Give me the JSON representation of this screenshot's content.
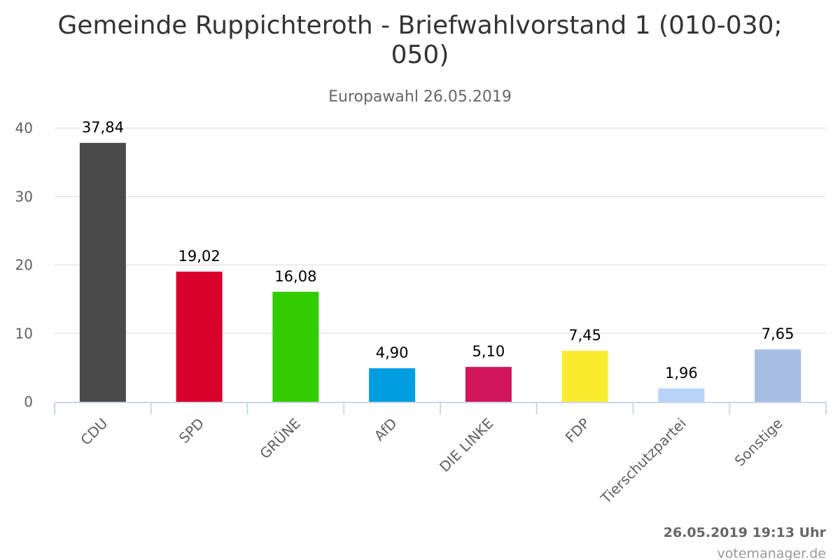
{
  "chart_data": {
    "type": "bar",
    "title": "Gemeinde Ruppichteroth - Briefwahlvorstand 1 (010-030; 050)",
    "title_lines": [
      "Gemeinde Ruppichteroth - Briefwahlvorstand 1 (010-030;",
      "050)"
    ],
    "subtitle": "Europawahl 26.05.2019",
    "categories": [
      "CDU",
      "SPD",
      "GRÜNE",
      "AfD",
      "DIE LINKE",
      "FDP",
      "Tierschutzpartei",
      "Sonstige"
    ],
    "values": [
      37.84,
      19.02,
      16.08,
      4.9,
      5.1,
      7.45,
      1.96,
      7.65
    ],
    "value_labels": [
      "37,84",
      "19,02",
      "16,08",
      "4,90",
      "5,10",
      "7,45",
      "1,96",
      "7,65"
    ],
    "colors": [
      "#4a4a4a",
      "#d9002b",
      "#33cc00",
      "#009ee0",
      "#d0175a",
      "#f9ec2f",
      "#b9d3f6",
      "#a8bde3"
    ],
    "ylim": [
      0,
      40
    ],
    "yticks": [
      0,
      10,
      20,
      30,
      40
    ],
    "xlabel": "",
    "ylabel": "",
    "grid": true,
    "legend": "none"
  },
  "footer": {
    "date": "26.05.2019 19:13 Uhr",
    "credit": "votemanager.de"
  }
}
